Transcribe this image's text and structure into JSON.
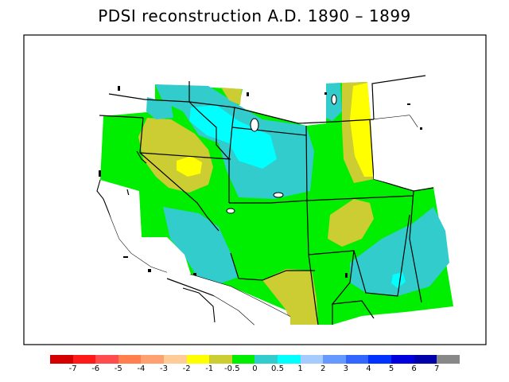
{
  "title": "PDSI reconstruction A.D. 1890 – 1899",
  "legend": {
    "colors": [
      "#d40000",
      "#ff1a1a",
      "#ff4d4d",
      "#ff7f4d",
      "#ffa070",
      "#ffcc99",
      "#ffff00",
      "#cccc33",
      "#00ee00",
      "#33cccc",
      "#00ffff",
      "#a6ccff",
      "#6699ff",
      "#3366ff",
      "#0033ff",
      "#0000dd",
      "#0000aa",
      "#888888"
    ],
    "ticks": [
      "-7",
      "-6",
      "-5",
      "-4",
      "-3",
      "-2",
      "-1",
      "-0.5",
      "0",
      "0.5",
      "1",
      "2",
      "3",
      "4",
      "5",
      "6",
      "7"
    ]
  },
  "palette": {
    "land_base": "#00ee00",
    "mid_teal": "#33cccc",
    "cyan": "#00ffff",
    "olive": "#cccc33",
    "yellow": "#ffff00",
    "border": "#000000"
  }
}
